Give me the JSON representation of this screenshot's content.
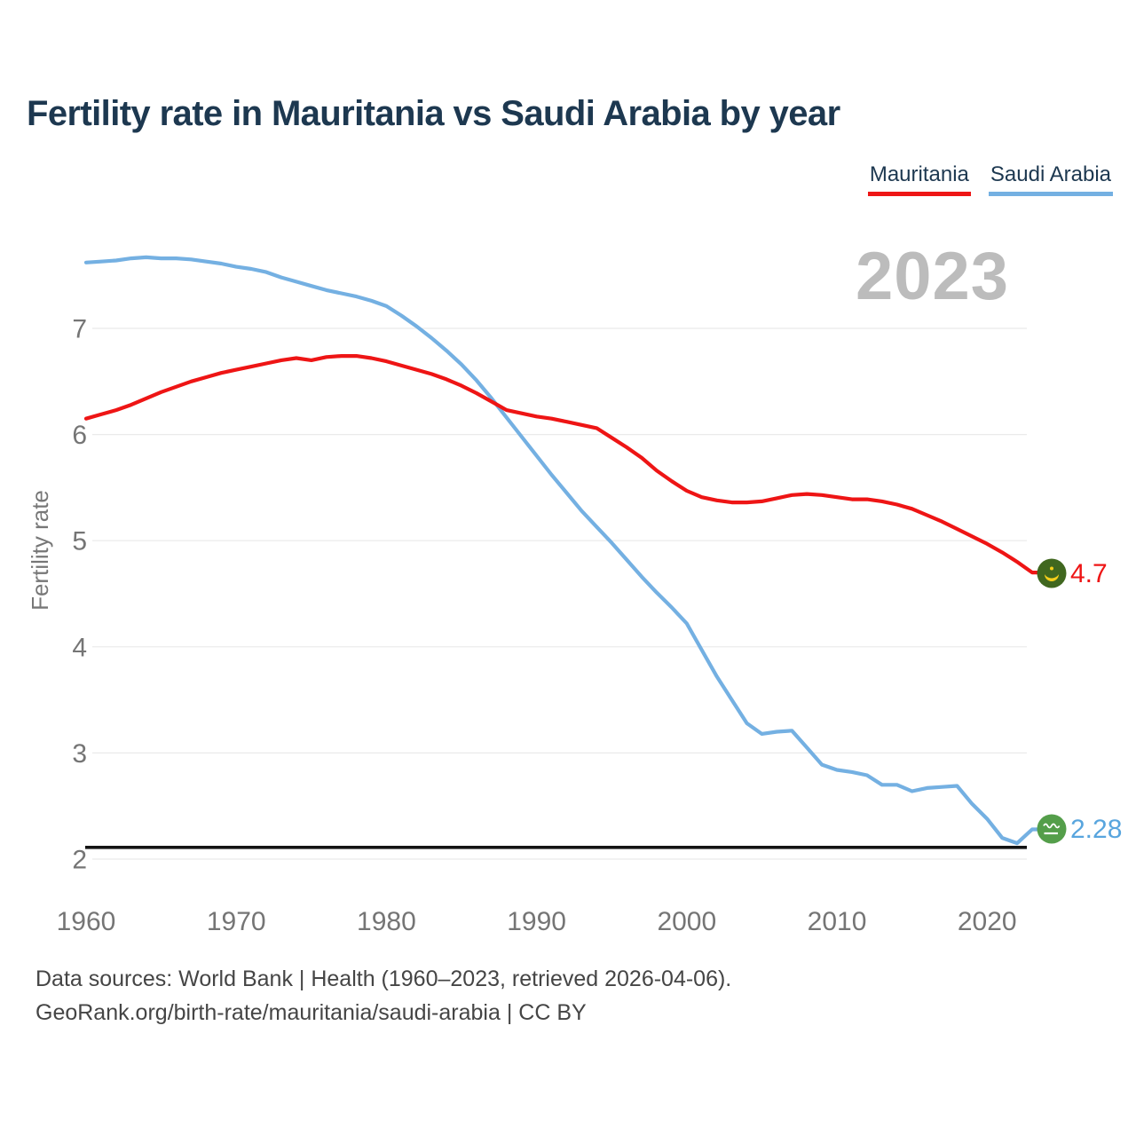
{
  "title": "Fertility rate in Mauritania vs Saudi Arabia by year",
  "legend": [
    {
      "label": "Mauritania",
      "color": "#ee1515"
    },
    {
      "label": "Saudi Arabia",
      "color": "#74b0e2"
    }
  ],
  "watermark": "2023",
  "footer": {
    "line1": "Data sources: World Bank | Health (1960–2023, retrieved 2026-04-06).",
    "line2": "GeoRank.org/birth-rate/mauritania/saudi-arabia | CC BY"
  },
  "chart_data": {
    "type": "line",
    "title": "Fertility rate in Mauritania vs Saudi Arabia by year",
    "xlabel": "",
    "ylabel": "Fertility rate",
    "x": [
      1960,
      1961,
      1962,
      1963,
      1964,
      1965,
      1966,
      1967,
      1968,
      1969,
      1970,
      1971,
      1972,
      1973,
      1974,
      1975,
      1976,
      1977,
      1978,
      1979,
      1980,
      1981,
      1982,
      1983,
      1984,
      1985,
      1986,
      1987,
      1988,
      1989,
      1990,
      1991,
      1992,
      1993,
      1994,
      1995,
      1996,
      1997,
      1998,
      1999,
      2000,
      2001,
      2002,
      2003,
      2004,
      2005,
      2006,
      2007,
      2008,
      2009,
      2010,
      2011,
      2012,
      2013,
      2014,
      2015,
      2016,
      2017,
      2018,
      2019,
      2020,
      2021,
      2022,
      2023
    ],
    "xticks": [
      1960,
      1970,
      1980,
      1990,
      2000,
      2010,
      2020
    ],
    "yticks": [
      2,
      3,
      4,
      5,
      6,
      7
    ],
    "ylim": [
      2.0,
      7.95
    ],
    "grid": true,
    "legend_position": "top-right",
    "series": [
      {
        "name": "Mauritania",
        "color": "#ee1515",
        "values": [
          6.15,
          6.19,
          6.23,
          6.28,
          6.34,
          6.4,
          6.45,
          6.5,
          6.54,
          6.58,
          6.61,
          6.64,
          6.67,
          6.7,
          6.72,
          6.7,
          6.73,
          6.74,
          6.74,
          6.72,
          6.69,
          6.65,
          6.61,
          6.57,
          6.52,
          6.46,
          6.39,
          6.31,
          6.23,
          6.2,
          6.17,
          6.15,
          6.12,
          6.09,
          6.06,
          5.97,
          5.88,
          5.78,
          5.66,
          5.56,
          5.47,
          5.41,
          5.38,
          5.36,
          5.36,
          5.37,
          5.4,
          5.43,
          5.44,
          5.43,
          5.41,
          5.39,
          5.39,
          5.37,
          5.34,
          5.3,
          5.24,
          5.18,
          5.11,
          5.04,
          4.97,
          4.89,
          4.8,
          4.7
        ]
      },
      {
        "name": "Saudi Arabia",
        "color": "#74b0e2",
        "values": [
          7.62,
          7.63,
          7.64,
          7.66,
          7.67,
          7.66,
          7.66,
          7.65,
          7.63,
          7.61,
          7.58,
          7.56,
          7.53,
          7.48,
          7.44,
          7.4,
          7.36,
          7.33,
          7.3,
          7.26,
          7.21,
          7.12,
          7.02,
          6.91,
          6.79,
          6.66,
          6.51,
          6.34,
          6.16,
          5.98,
          5.8,
          5.62,
          5.45,
          5.28,
          5.13,
          4.98,
          4.82,
          4.66,
          4.51,
          4.37,
          4.22,
          3.97,
          3.72,
          3.5,
          3.28,
          3.18,
          3.2,
          3.21,
          3.05,
          2.89,
          2.84,
          2.82,
          2.79,
          2.7,
          2.7,
          2.64,
          2.67,
          2.68,
          2.69,
          2.52,
          2.38,
          2.2,
          2.15,
          2.28
        ]
      }
    ],
    "replacement_line": 2.11,
    "end_labels": {
      "mauritania": "4.7",
      "saudi_arabia": "2.28"
    }
  }
}
